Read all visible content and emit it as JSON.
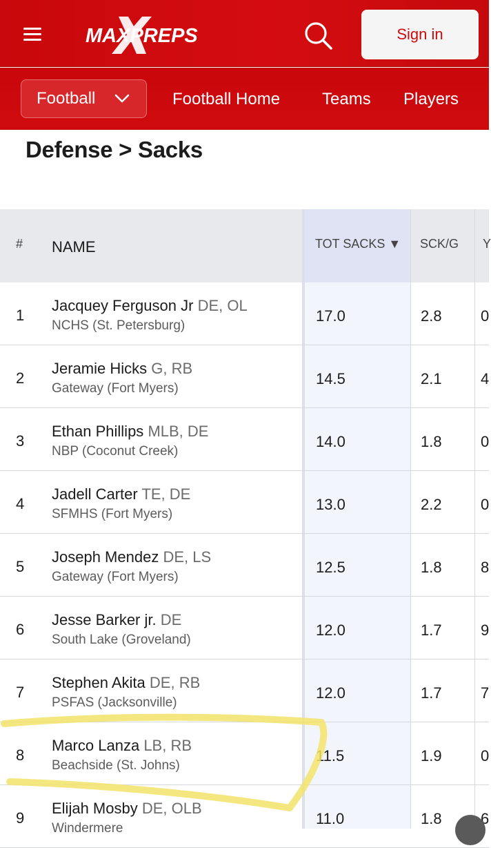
{
  "header": {
    "brand": "MAXPREPS",
    "signin_label": "Sign in",
    "accent_color": "#d1090d"
  },
  "subnav": {
    "sport": "Football",
    "links": [
      "Football Home",
      "Teams",
      "Players"
    ]
  },
  "page": {
    "title": "Defense > Sacks"
  },
  "table": {
    "columns": {
      "rank": "#",
      "name": "NAME",
      "tot_sacks": "TOT SACKS ▼",
      "sck_g": "SCK/G",
      "clipped": "Y"
    },
    "rows": [
      {
        "rank": "1",
        "name": "Jacquey Ferguson Jr",
        "pos": "DE, OL",
        "school": "NCHS (St. Petersburg)",
        "tot_sacks": "17.0",
        "sck_g": "2.8",
        "clipped": "0"
      },
      {
        "rank": "2",
        "name": "Jeramie Hicks",
        "pos": "G, RB",
        "school": "Gateway (Fort Myers)",
        "tot_sacks": "14.5",
        "sck_g": "2.1",
        "clipped": "4"
      },
      {
        "rank": "3",
        "name": "Ethan Phillips",
        "pos": "MLB, DE",
        "school": "NBP (Coconut Creek)",
        "tot_sacks": "14.0",
        "sck_g": "1.8",
        "clipped": "0"
      },
      {
        "rank": "4",
        "name": "Jadell Carter",
        "pos": "TE, DE",
        "school": "SFMHS (Fort Myers)",
        "tot_sacks": "13.0",
        "sck_g": "2.2",
        "clipped": "0"
      },
      {
        "rank": "5",
        "name": "Joseph Mendez",
        "pos": "DE, LS",
        "school": "Gateway (Fort Myers)",
        "tot_sacks": "12.5",
        "sck_g": "1.8",
        "clipped": "8"
      },
      {
        "rank": "6",
        "name": "Jesse Barker jr.",
        "pos": "DE",
        "school": "South Lake (Groveland)",
        "tot_sacks": "12.0",
        "sck_g": "1.7",
        "clipped": "9"
      },
      {
        "rank": "7",
        "name": "Stephen Akita",
        "pos": "DE, RB",
        "school": "PSFAS (Jacksonville)",
        "tot_sacks": "12.0",
        "sck_g": "1.7",
        "clipped": "7"
      },
      {
        "rank": "8",
        "name": "Marco Lanza",
        "pos": "LB, RB",
        "school": "Beachside (St. Johns)",
        "tot_sacks": "11.5",
        "sck_g": "1.9",
        "clipped": "0"
      },
      {
        "rank": "9",
        "name": "Elijah Mosby",
        "pos": "DE, OLB",
        "school": "Windermere",
        "tot_sacks": "11.0",
        "sck_g": "1.8",
        "clipped": "6"
      }
    ]
  },
  "annotation": {
    "highlight_color": "#f3e36a"
  }
}
